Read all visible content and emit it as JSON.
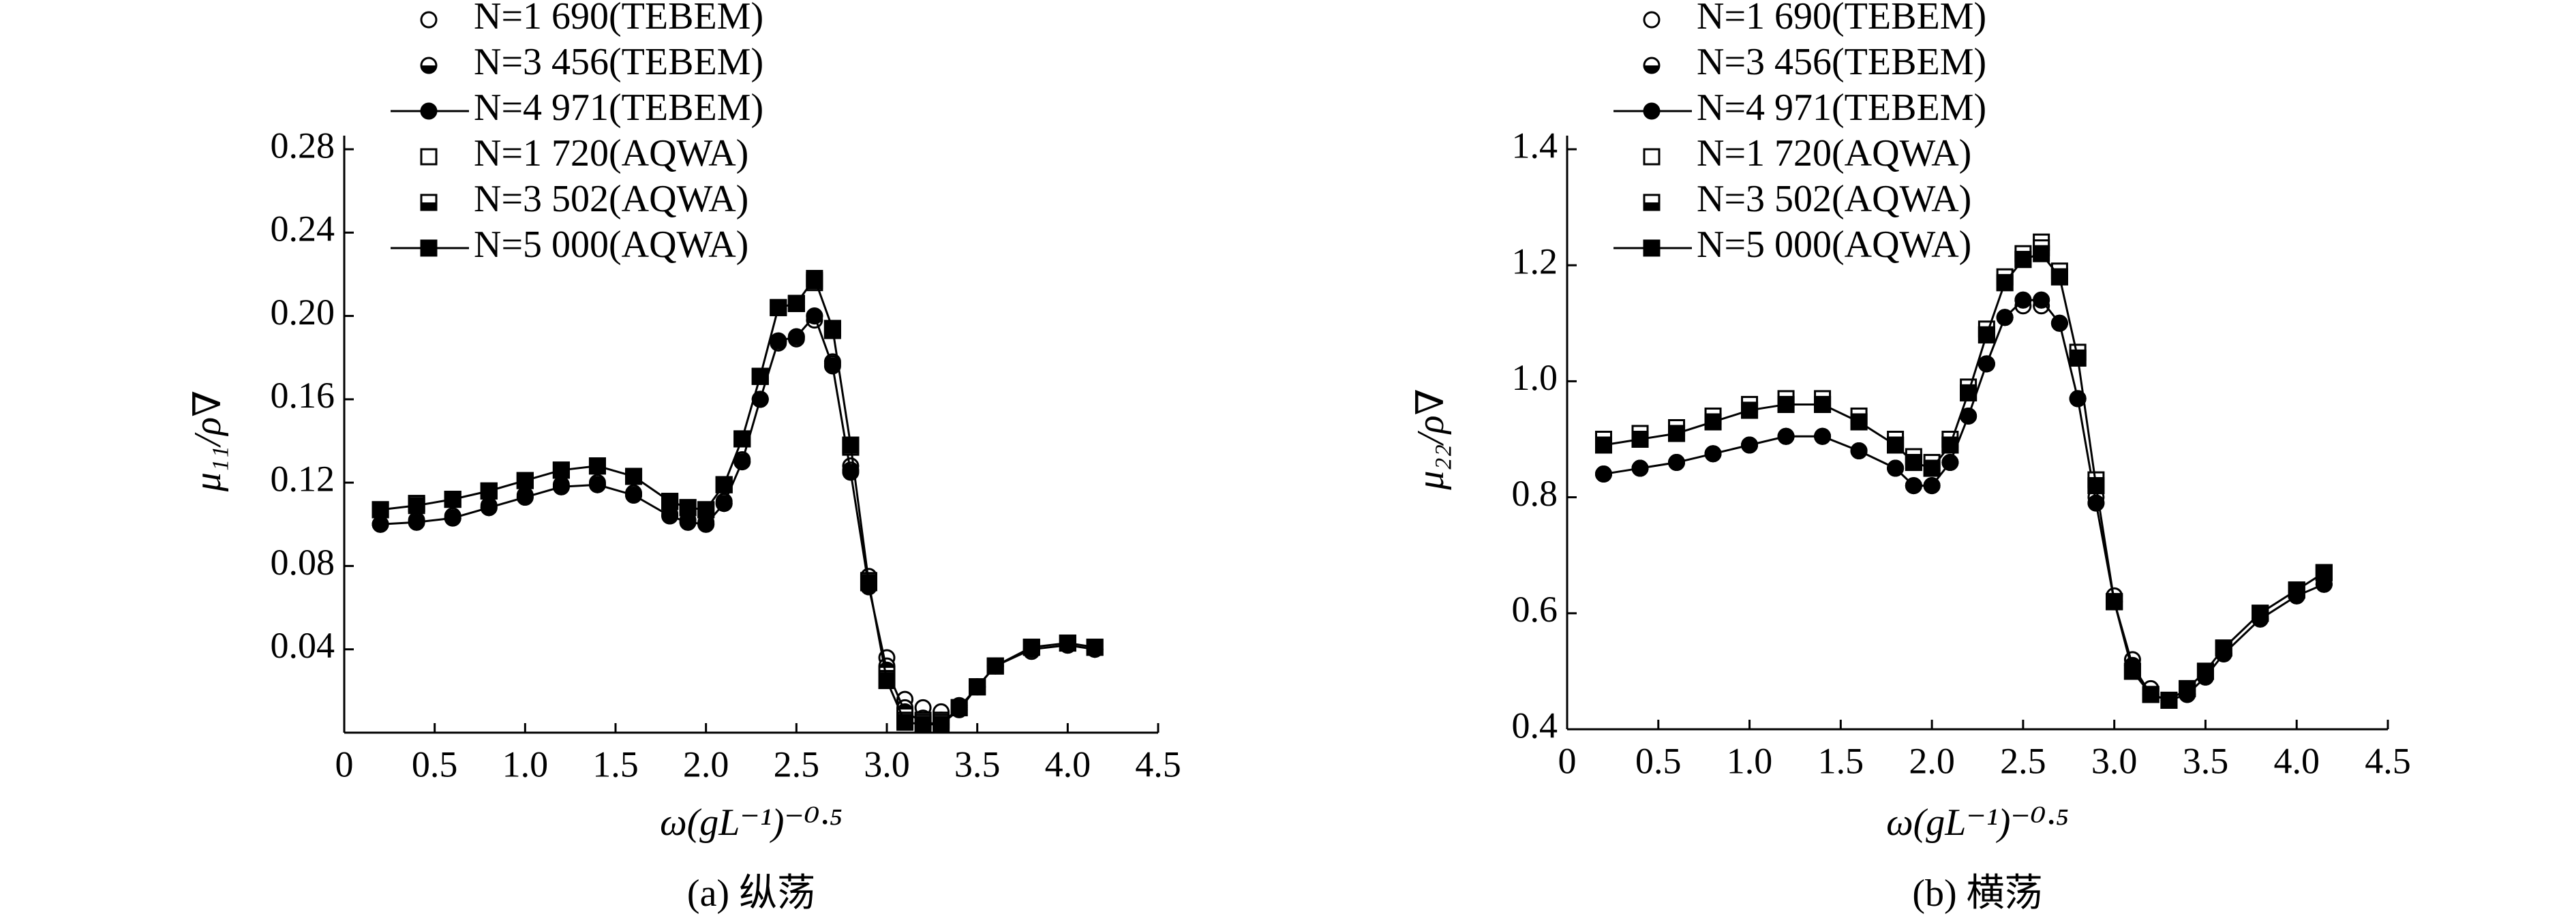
{
  "chart_data": [
    {
      "type": "line",
      "xlabel": "ω(gL⁻¹)⁻⁰·⁵",
      "ylabel": "μ₁₁/ρ∇",
      "caption": "(a) 纵荡",
      "xlim": [
        0,
        4.5
      ],
      "ylim": [
        0,
        0.28
      ],
      "xticks": [
        0,
        0.5,
        {
          "value": 1,
          "label": "1.0"
        },
        1.5,
        {
          "value": 2,
          "label": "2.0"
        },
        2.5,
        {
          "value": 3,
          "label": "3.0"
        },
        3.5,
        {
          "value": 4,
          "label": "4.0"
        },
        4.5
      ],
      "yticks": [
        0.04,
        0.08,
        0.12,
        0.16,
        {
          "value": 0.2,
          "label": "0.20"
        },
        0.24,
        0.28
      ],
      "x": [
        0.2,
        0.4,
        0.6,
        0.8,
        1.0,
        1.2,
        1.4,
        1.6,
        1.8,
        1.9,
        2.0,
        2.1,
        2.2,
        2.3,
        2.4,
        2.5,
        2.6,
        2.7,
        2.8,
        2.9,
        3.0,
        3.1,
        3.2,
        3.3,
        3.4,
        3.5,
        3.6,
        3.8,
        4.0,
        4.15
      ],
      "series": [
        {
          "name": "N=1 690(TEBEM)",
          "color": "#000000",
          "marker": "circle-open",
          "line": false,
          "values": [
            0.1,
            0.102,
            0.104,
            0.109,
            0.114,
            0.119,
            0.12,
            0.115,
            0.105,
            0.102,
            0.101,
            0.111,
            0.131,
            0.16,
            0.187,
            0.189,
            0.198,
            0.178,
            0.128,
            0.075,
            0.036,
            0.016,
            0.012,
            0.01,
            0.013,
            0.022,
            0.032,
            0.039,
            0.042,
            0.04
          ]
        },
        {
          "name": "N=3 456(TEBEM)",
          "color": "#000000",
          "marker": "circle-half",
          "line": false,
          "values": [
            0.1,
            0.101,
            0.103,
            0.108,
            0.113,
            0.118,
            0.119,
            0.114,
            0.104,
            0.101,
            0.1,
            0.11,
            0.13,
            0.16,
            0.188,
            0.19,
            0.2,
            0.177,
            0.126,
            0.072,
            0.032,
            0.012,
            0.007,
            0.006,
            0.012,
            0.022,
            0.032,
            0.04,
            0.042,
            0.04
          ]
        },
        {
          "name": "N=4 971(TEBEM)",
          "color": "#000000",
          "marker": "circle-filled",
          "line": true,
          "values": [
            0.1,
            0.101,
            0.103,
            0.108,
            0.113,
            0.118,
            0.119,
            0.114,
            0.104,
            0.101,
            0.1,
            0.11,
            0.13,
            0.16,
            0.188,
            0.19,
            0.2,
            0.176,
            0.125,
            0.07,
            0.03,
            0.01,
            0.005,
            0.004,
            0.011,
            0.022,
            0.032,
            0.04,
            0.042,
            0.04
          ]
        },
        {
          "name": "N=1 720(AQWA)",
          "color": "#000000",
          "marker": "square-open",
          "line": false,
          "values": [
            0.107,
            0.11,
            0.112,
            0.116,
            0.121,
            0.126,
            0.128,
            0.123,
            0.111,
            0.108,
            0.107,
            0.119,
            0.141,
            0.171,
            0.204,
            0.206,
            0.216,
            0.193,
            0.137,
            0.073,
            0.028,
            0.008,
            0.006,
            0.006,
            0.012,
            0.022,
            0.032,
            0.041,
            0.043,
            0.041
          ]
        },
        {
          "name": "N=3 502(AQWA)",
          "color": "#000000",
          "marker": "square-half",
          "line": false,
          "values": [
            0.107,
            0.11,
            0.112,
            0.116,
            0.121,
            0.126,
            0.128,
            0.123,
            0.111,
            0.108,
            0.107,
            0.119,
            0.141,
            0.171,
            0.204,
            0.206,
            0.217,
            0.194,
            0.138,
            0.072,
            0.026,
            0.006,
            0.005,
            0.005,
            0.012,
            0.022,
            0.032,
            0.041,
            0.043,
            0.041
          ]
        },
        {
          "name": "N=5 000(AQWA)",
          "color": "#000000",
          "marker": "square-filled",
          "line": true,
          "values": [
            0.107,
            0.109,
            0.112,
            0.116,
            0.121,
            0.126,
            0.128,
            0.123,
            0.111,
            0.108,
            0.107,
            0.119,
            0.141,
            0.171,
            0.204,
            0.206,
            0.218,
            0.194,
            0.138,
            0.072,
            0.025,
            0.005,
            0.004,
            0.004,
            0.012,
            0.022,
            0.032,
            0.041,
            0.043,
            0.041
          ]
        }
      ]
    },
    {
      "type": "line",
      "xlabel": "ω(gL⁻¹)⁻⁰·⁵",
      "ylabel": "μ₂₂/ρ∇",
      "caption": "(b) 横荡",
      "xlim": [
        0,
        4.5
      ],
      "ylim": [
        0.4,
        1.4
      ],
      "xticks": [
        0,
        0.5,
        {
          "value": 1,
          "label": "1.0"
        },
        1.5,
        {
          "value": 2,
          "label": "2.0"
        },
        2.5,
        {
          "value": 3,
          "label": "3.0"
        },
        3.5,
        {
          "value": 4,
          "label": "4.0"
        },
        4.5
      ],
      "yticks": [
        0.4,
        0.6,
        0.8,
        {
          "value": 1,
          "label": "1.0"
        },
        1.2,
        1.4
      ],
      "x": [
        0.2,
        0.4,
        0.6,
        0.8,
        1.0,
        1.2,
        1.4,
        1.6,
        1.8,
        1.9,
        2.0,
        2.1,
        2.2,
        2.3,
        2.4,
        2.5,
        2.6,
        2.7,
        2.8,
        2.9,
        3.0,
        3.1,
        3.2,
        3.3,
        3.4,
        3.5,
        3.6,
        3.8,
        4.0,
        4.15
      ],
      "series": [
        {
          "name": "N=1 690(TEBEM)",
          "color": "#000000",
          "marker": "circle-open",
          "line": false,
          "values": [
            0.84,
            0.85,
            0.86,
            0.875,
            0.89,
            0.905,
            0.905,
            0.88,
            0.85,
            0.82,
            0.82,
            0.86,
            0.94,
            1.03,
            1.11,
            1.13,
            1.13,
            1.1,
            0.97,
            0.8,
            0.63,
            0.52,
            0.47,
            0.45,
            0.46,
            0.49,
            0.53,
            0.59,
            0.63,
            0.65
          ]
        },
        {
          "name": "N=3 456(TEBEM)",
          "color": "#000000",
          "marker": "circle-half",
          "line": false,
          "values": [
            0.84,
            0.85,
            0.86,
            0.875,
            0.89,
            0.905,
            0.905,
            0.88,
            0.85,
            0.82,
            0.82,
            0.86,
            0.94,
            1.03,
            1.11,
            1.14,
            1.14,
            1.1,
            0.97,
            0.79,
            0.62,
            0.51,
            0.46,
            0.45,
            0.46,
            0.49,
            0.53,
            0.59,
            0.63,
            0.65
          ]
        },
        {
          "name": "N=4 971(TEBEM)",
          "color": "#000000",
          "marker": "circle-filled",
          "line": true,
          "values": [
            0.84,
            0.85,
            0.86,
            0.875,
            0.89,
            0.905,
            0.905,
            0.88,
            0.85,
            0.82,
            0.82,
            0.86,
            0.94,
            1.03,
            1.11,
            1.14,
            1.14,
            1.1,
            0.97,
            0.79,
            0.62,
            0.51,
            0.46,
            0.45,
            0.46,
            0.49,
            0.53,
            0.59,
            0.63,
            0.65
          ]
        },
        {
          "name": "N=1 720(AQWA)",
          "color": "#000000",
          "marker": "square-open",
          "line": false,
          "values": [
            0.9,
            0.91,
            0.92,
            0.94,
            0.96,
            0.97,
            0.97,
            0.94,
            0.9,
            0.87,
            0.86,
            0.9,
            0.99,
            1.09,
            1.18,
            1.22,
            1.24,
            1.19,
            1.05,
            0.83,
            0.62,
            0.5,
            0.46,
            0.45,
            0.47,
            0.5,
            0.54,
            0.6,
            0.64,
            0.67
          ]
        },
        {
          "name": "N=3 502(AQWA)",
          "color": "#000000",
          "marker": "square-half",
          "line": false,
          "values": [
            0.89,
            0.9,
            0.91,
            0.93,
            0.95,
            0.96,
            0.96,
            0.93,
            0.89,
            0.86,
            0.85,
            0.89,
            0.98,
            1.08,
            1.17,
            1.21,
            1.23,
            1.18,
            1.04,
            0.82,
            0.62,
            0.5,
            0.46,
            0.45,
            0.47,
            0.5,
            0.54,
            0.6,
            0.64,
            0.67
          ]
        },
        {
          "name": "N=5 000(AQWA)",
          "color": "#000000",
          "marker": "square-filled",
          "line": true,
          "values": [
            0.89,
            0.9,
            0.91,
            0.93,
            0.95,
            0.96,
            0.96,
            0.93,
            0.89,
            0.86,
            0.85,
            0.89,
            0.98,
            1.08,
            1.17,
            1.21,
            1.22,
            1.18,
            1.04,
            0.82,
            0.62,
            0.5,
            0.46,
            0.45,
            0.47,
            0.5,
            0.54,
            0.6,
            0.64,
            0.67
          ]
        }
      ]
    }
  ]
}
